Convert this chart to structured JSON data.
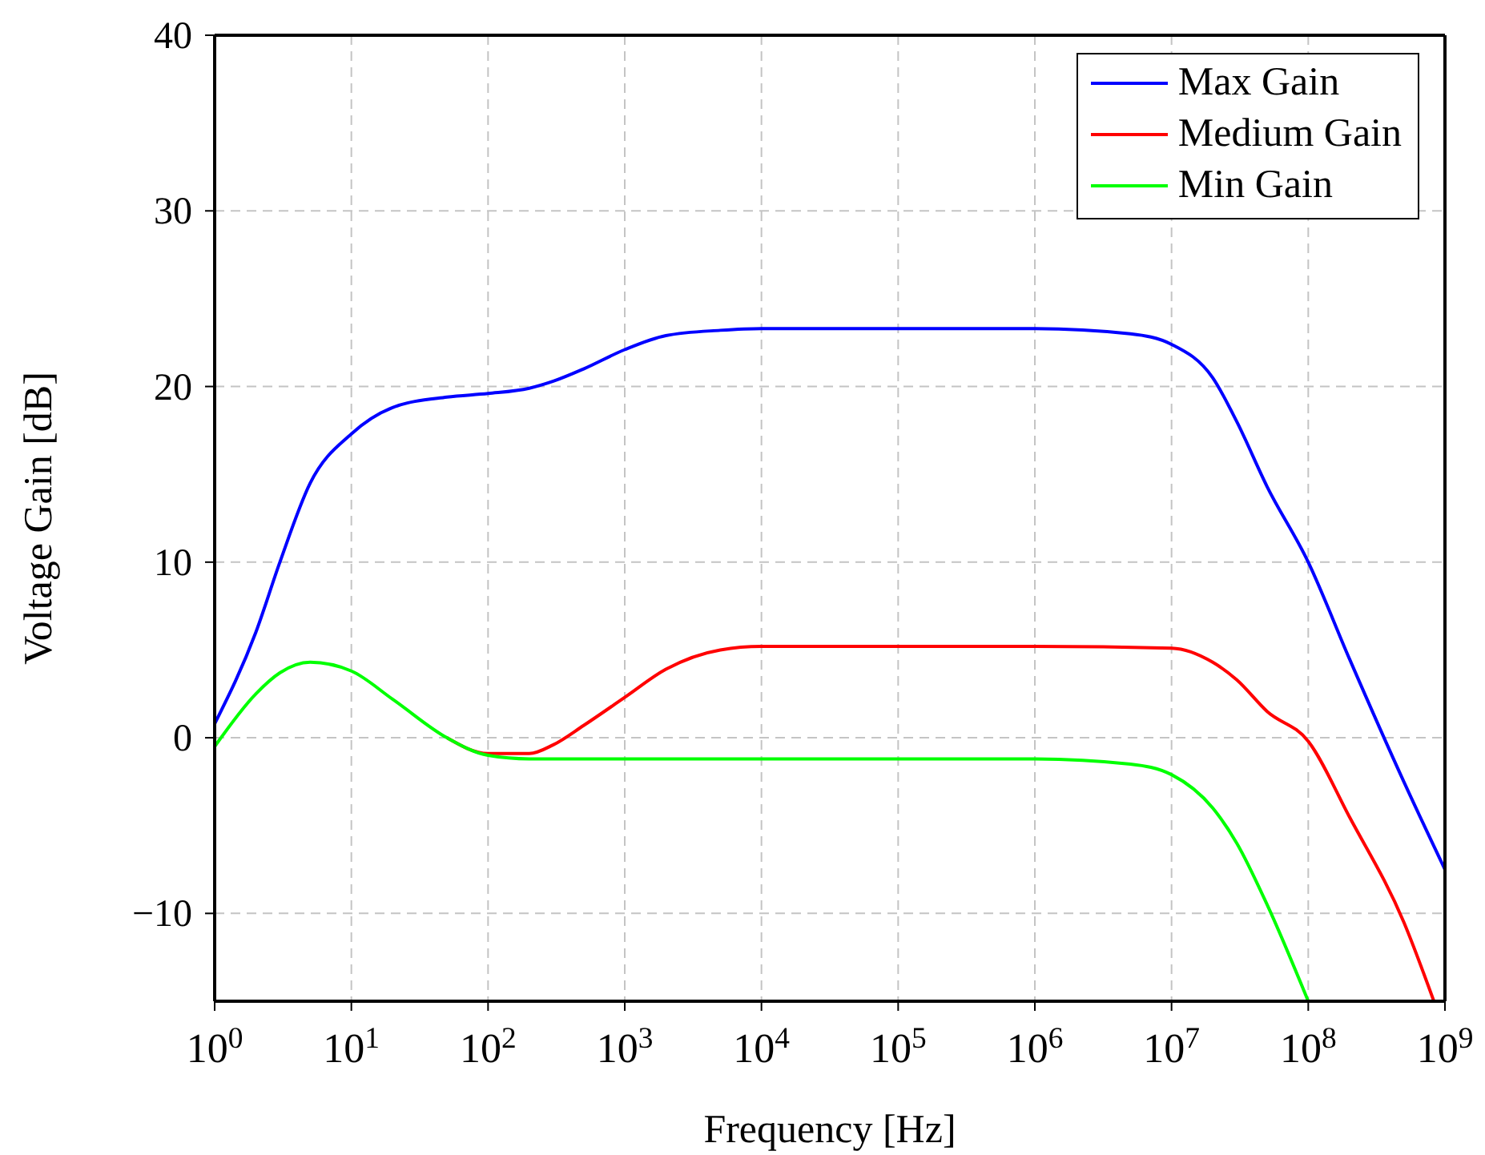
{
  "chart_data": {
    "type": "line",
    "xlabel": "Frequency [Hz]",
    "ylabel": "Voltage Gain [dB]",
    "log": "x",
    "xlim": [
      1,
      1000000000
    ],
    "xticks": [
      {
        "value": 1,
        "label": "10$^{0}$"
      },
      {
        "value": 10,
        "label": "10$^{1}$"
      },
      {
        "value": 100,
        "label": "10$^{2}$"
      },
      {
        "value": 1000,
        "label": "10$^{3}$"
      },
      {
        "value": 10000,
        "label": "10$^{4}$"
      },
      {
        "value": 100000,
        "label": "10$^{5}$"
      },
      {
        "value": 1000000,
        "label": "10$^{6}$"
      },
      {
        "value": 10000000,
        "label": "10$^{7}$"
      },
      {
        "value": 100000000,
        "label": "10$^{8}$"
      },
      {
        "value": 1000000000,
        "label": "10$^{9}$"
      }
    ],
    "ylim": [
      -15,
      40
    ],
    "yticks": [
      -10,
      0,
      10,
      20,
      30,
      40
    ],
    "grid": true,
    "legend": "top right",
    "marker": "none",
    "line_style": "solid",
    "series": [
      {
        "name": "Max Gain",
        "color": "#0000ff",
        "x": [
          1,
          2,
          3,
          5,
          10,
          20,
          50,
          100,
          200,
          300,
          500,
          1000,
          2000,
          5000,
          10000,
          1000000,
          5000000,
          10000000,
          20000000,
          30000000,
          50000000,
          100000000,
          200000000,
          500000000,
          1000000000
        ],
        "values": [
          0.8,
          6,
          10,
          14.5,
          17.3,
          18.8,
          19.4,
          19.6,
          19.9,
          20.3,
          21,
          22.1,
          22.9,
          23.2,
          23.3,
          23.3,
          23,
          22.4,
          20.5,
          18,
          14.3,
          10,
          4.5,
          -2.5,
          -7.5
        ]
      },
      {
        "name": "Medium Gain",
        "color": "#ff0000",
        "x": [
          50,
          100,
          200,
          300,
          500,
          1000,
          2000,
          5000,
          10000,
          1000000,
          10000000,
          20000000,
          30000000,
          50000000,
          100000000,
          200000000,
          500000000,
          830000000
        ],
        "values": [
          0,
          -0.9,
          -0.9,
          -0.4,
          0.7,
          2.3,
          3.9,
          5,
          5.2,
          5.2,
          5.1,
          4.3,
          3.3,
          1.5,
          -0.2,
          -4.5,
          -10.5,
          -15
        ]
      },
      {
        "name": "Min Gain",
        "color": "#00ff00",
        "x": [
          1,
          2,
          3,
          5,
          10,
          20,
          50,
          100,
          200,
          1000,
          1000000,
          5000000,
          10000000,
          20000000,
          30000000,
          50000000,
          100000000
        ],
        "values": [
          -0.5,
          2.5,
          3.7,
          4.3,
          3.8,
          2.2,
          0,
          -1,
          -1.2,
          -1.2,
          -1.2,
          -1.5,
          -2.1,
          -4,
          -6,
          -9.5,
          -15
        ]
      }
    ]
  }
}
